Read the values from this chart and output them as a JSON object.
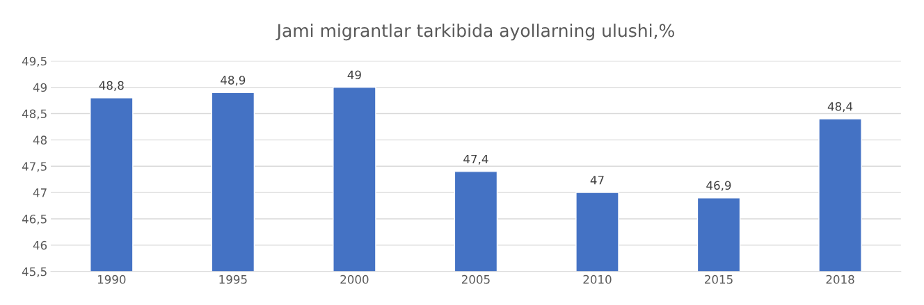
{
  "chart_data": {
    "type": "bar",
    "title": "Jami migrantlar tarkibida ayollarning ulushi,%",
    "categories": [
      "1990",
      "1995",
      "2000",
      "2005",
      "2010",
      "2015",
      "2018"
    ],
    "values": [
      48.8,
      48.9,
      49,
      47.4,
      47,
      46.9,
      48.4
    ],
    "value_labels": [
      "48,8",
      "48,9",
      "49",
      "47,4",
      "47",
      "46,9",
      "48,4"
    ],
    "color": "#4472c4",
    "ylim": [
      45.5,
      49.5
    ],
    "yticks": [
      {
        "value": 45.5,
        "label": "45,5"
      },
      46,
      {
        "value": 46.5,
        "label": "46,5"
      },
      47,
      {
        "value": 47.5,
        "label": "47,5"
      },
      48,
      {
        "value": 48.5,
        "label": "48,5"
      },
      49,
      {
        "value": 49.5,
        "label": "49,5"
      }
    ],
    "grid": "y",
    "legend": false
  }
}
